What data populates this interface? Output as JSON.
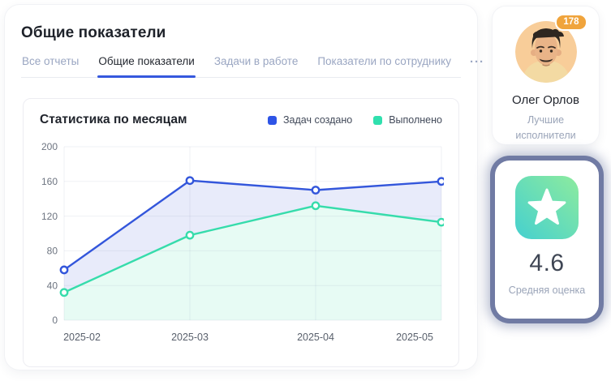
{
  "page": {
    "title": "Общие показатели"
  },
  "tabs": {
    "items": [
      {
        "label": "Все отчеты",
        "active": false
      },
      {
        "label": "Общие показатели",
        "active": true
      },
      {
        "label": "Задачи в работе",
        "active": false
      },
      {
        "label": "Показатели по сотруднику",
        "active": false
      }
    ],
    "more_label": "···"
  },
  "chart_card": {
    "title": "Статистика по месяцам"
  },
  "chart_data": {
    "type": "line",
    "title": "Статистика по месяцам",
    "categories": [
      "2025-02",
      "2025-03",
      "2025-04",
      "2025-05"
    ],
    "series": [
      {
        "name": "Задач создано",
        "values": [
          58,
          161,
          150,
          160
        ],
        "color": "#3356db",
        "fill": "#e8ebfa",
        "marker": "circle-open"
      },
      {
        "name": "Выполнено",
        "values": [
          32,
          98,
          132,
          113
        ],
        "color": "#36dcab",
        "fill": "#e7fbf4",
        "marker": "circle-open"
      }
    ],
    "xlabel": "",
    "ylabel": "",
    "ylim": [
      0,
      200
    ],
    "yticks": [
      0,
      40,
      80,
      120,
      160,
      200
    ],
    "grid": true,
    "legend_position": "top-right",
    "tick_color": "#6d7480",
    "xlabel_color": "#59606c",
    "gridline_color": "rgba(120,130,175,0.12)"
  },
  "performer_card": {
    "badge_count": "178",
    "name": "Олег Орлов",
    "subtitle": "Лучшие исполнители"
  },
  "rating_card": {
    "value": "4.6",
    "label": "Средняя оценка"
  },
  "colors": {
    "accent_blue": "#3558dd",
    "legend_blue": "#2e54e6",
    "legend_mint": "#30e0ae",
    "badge_orange": "#f0a43c",
    "glow_slate": "#64709c",
    "tile_gradient_start": "#45d0cf",
    "tile_gradient_end": "#8deb9e",
    "inactive_tab": "#9aa6c2"
  },
  "icons": {
    "star": "star-icon",
    "more": "ellipsis-icon"
  }
}
